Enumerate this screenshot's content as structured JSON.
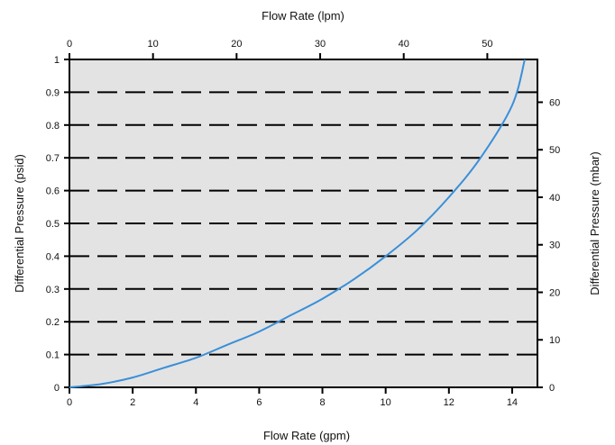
{
  "chart_data": {
    "type": "line",
    "top_axis": {
      "label": "Flow Rate (lpm)",
      "range": [
        0,
        56
      ],
      "ticks": [
        0,
        10,
        20,
        30,
        40,
        50
      ],
      "tick_labels": [
        "0",
        "10",
        "20",
        "30",
        "40",
        "50"
      ]
    },
    "bottom_axis": {
      "label": "Flow Rate (gpm)",
      "range": [
        0,
        14.8
      ],
      "ticks": [
        0,
        2,
        4,
        6,
        8,
        10,
        12,
        14
      ],
      "tick_labels": [
        "0",
        "2",
        "4",
        "6",
        "8",
        "10",
        "12",
        "14"
      ]
    },
    "left_axis": {
      "label": "Differential Pressure (psid)",
      "range": [
        0,
        1
      ],
      "ticks": [
        0,
        0.1,
        0.2,
        0.3,
        0.4,
        0.5,
        0.6,
        0.7,
        0.8,
        0.9,
        1
      ],
      "tick_labels": [
        "0",
        "0.1",
        "0.2",
        "0.3",
        "0.4",
        "0.5",
        "0.6",
        "0.7",
        "0.8",
        "0.9",
        "1"
      ]
    },
    "right_axis": {
      "label": "Differential Pressure (mbar)",
      "range": [
        0,
        69
      ],
      "ticks": [
        0,
        10,
        20,
        30,
        40,
        50,
        60
      ],
      "tick_labels": [
        "0",
        "10",
        "20",
        "30",
        "40",
        "50",
        "60"
      ]
    },
    "grid": "horizontal dashed at each psid tick",
    "plot_background": "#e3e3e3",
    "series": [
      {
        "color": "#3a8fd8",
        "x": [
          0,
          1,
          2,
          3,
          4,
          5,
          6,
          7,
          8,
          9,
          10,
          11,
          12,
          13,
          14,
          14.4
        ],
        "y": [
          0,
          0.01,
          0.03,
          0.06,
          0.09,
          0.13,
          0.17,
          0.22,
          0.27,
          0.33,
          0.4,
          0.48,
          0.58,
          0.7,
          0.86,
          1.0
        ]
      }
    ]
  }
}
